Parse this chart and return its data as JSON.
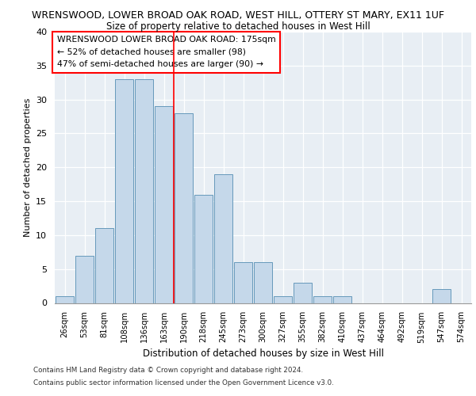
{
  "title_line1": "WRENSWOOD, LOWER BROAD OAK ROAD, WEST HILL, OTTERY ST MARY, EX11 1UF",
  "title_line2": "Size of property relative to detached houses in West Hill",
  "xlabel": "Distribution of detached houses by size in West Hill",
  "ylabel": "Number of detached properties",
  "categories": [
    "26sqm",
    "53sqm",
    "81sqm",
    "108sqm",
    "136sqm",
    "163sqm",
    "190sqm",
    "218sqm",
    "245sqm",
    "273sqm",
    "300sqm",
    "327sqm",
    "355sqm",
    "382sqm",
    "410sqm",
    "437sqm",
    "464sqm",
    "492sqm",
    "519sqm",
    "547sqm",
    "574sqm"
  ],
  "values": [
    1,
    7,
    11,
    33,
    33,
    29,
    28,
    16,
    19,
    6,
    6,
    1,
    3,
    1,
    1,
    0,
    0,
    0,
    0,
    2,
    0
  ],
  "bar_color": "#c5d8ea",
  "bar_edge_color": "#6699bb",
  "vertical_line_x": 5.5,
  "vertical_line_color": "red",
  "annotation_text": "WRENSWOOD LOWER BROAD OAK ROAD: 175sqm\n← 52% of detached houses are smaller (98)\n47% of semi-detached houses are larger (90) →",
  "annotation_box_facecolor": "white",
  "annotation_box_edgecolor": "red",
  "ylim": [
    0,
    40
  ],
  "yticks": [
    0,
    5,
    10,
    15,
    20,
    25,
    30,
    35,
    40
  ],
  "footer_line1": "Contains HM Land Registry data © Crown copyright and database right 2024.",
  "footer_line2": "Contains public sector information licensed under the Open Government Licence v3.0.",
  "fig_bg_color": "#ffffff",
  "plot_bg_color": "#e8eef4"
}
